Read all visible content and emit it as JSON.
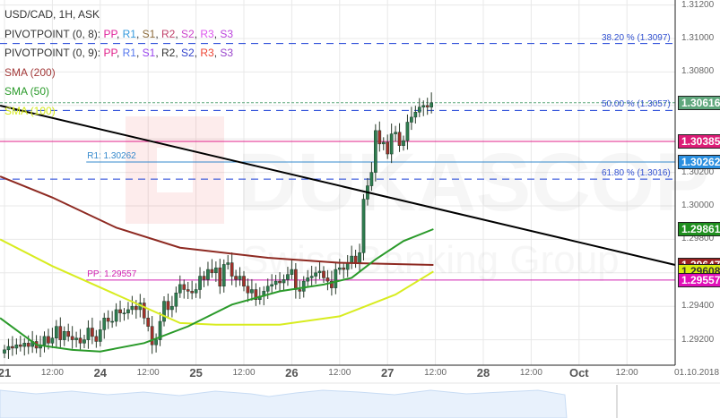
{
  "legend": {
    "title": "USD/CAD, 1H, ASK",
    "pivot1": {
      "label": "PIVOTPOINT (0, 8):",
      "items": [
        {
          "text": "PP",
          "color": "#e0209a"
        },
        {
          "text": "R1",
          "color": "#3399dd"
        },
        {
          "text": "S1",
          "color": "#8b6a3a"
        },
        {
          "text": "R2",
          "color": "#c0406a"
        },
        {
          "text": "S2",
          "color": "#cc44cc"
        },
        {
          "text": "R3",
          "color": "#dd55ee"
        },
        {
          "text": "S3",
          "color": "#bb44dd"
        }
      ]
    },
    "pivot2": {
      "label": "PIVOTPOINT (0, 9):",
      "items": [
        {
          "text": "PP",
          "color": "#e0208a"
        },
        {
          "text": "R1",
          "color": "#5577ee"
        },
        {
          "text": "S1",
          "color": "#9944ee"
        },
        {
          "text": "R2",
          "color": "#333333"
        },
        {
          "text": "S2",
          "color": "#3344cc"
        },
        {
          "text": "R3",
          "color": "#ee4433"
        },
        {
          "text": "S3",
          "color": "#9944cc"
        }
      ]
    },
    "sma200": {
      "text": "SMA (200)",
      "color": "#a33a3a"
    },
    "sma50": {
      "text": "SMA (50)",
      "color": "#2a9a2a"
    },
    "sma100": {
      "text": "SMA (100)",
      "color": "#d4e81a"
    }
  },
  "chart_data": {
    "type": "candlestick",
    "symbol": "USD/CAD",
    "timeframe": "1H",
    "ylim": [
      1.291,
      1.3122
    ],
    "y_ticks": [
      "1.31200",
      "1.31000",
      "1.30800",
      "1.30400",
      "1.30200",
      "1.30000",
      "1.29800",
      "1.29400",
      "1.29200"
    ],
    "y_tick_values": [
      1.312,
      1.31,
      1.308,
      1.304,
      1.302,
      1.3,
      1.298,
      1.294,
      1.292
    ],
    "x_ticks": [
      {
        "label": "21",
        "hour": 0,
        "day": true
      },
      {
        "label": "12:00",
        "hour": 12
      },
      {
        "label": "24",
        "hour": 24,
        "day": true
      },
      {
        "label": "12:00",
        "hour": 36
      },
      {
        "label": "25",
        "hour": 48,
        "day": true
      },
      {
        "label": "12:00",
        "hour": 60
      },
      {
        "label": "26",
        "hour": 72,
        "day": true
      },
      {
        "label": "12:00",
        "hour": 84
      },
      {
        "label": "27",
        "hour": 96,
        "day": true
      },
      {
        "label": "12:00",
        "hour": 108
      },
      {
        "label": "28",
        "hour": 120,
        "day": true
      },
      {
        "label": "12:00",
        "hour": 132
      },
      {
        "label": "Oct",
        "hour": 144,
        "day": true
      },
      {
        "label": "12:00",
        "hour": 156
      }
    ],
    "date_label": "01.10.2018",
    "closes": [
      1.2914,
      1.2916,
      1.2915,
      1.2917,
      1.2916,
      1.2918,
      1.2916,
      1.2919,
      1.2915,
      1.2917,
      1.2922,
      1.2918,
      1.2921,
      1.2928,
      1.292,
      1.2925,
      1.2922,
      1.292,
      1.2921,
      1.2918,
      1.292,
      1.2927,
      1.2922,
      1.2919,
      1.2926,
      1.2933,
      1.2931,
      1.2931,
      1.2938,
      1.2936,
      1.2936,
      1.2938,
      1.294,
      1.2938,
      1.2942,
      1.2933,
      1.2928,
      1.2917,
      1.292,
      1.2931,
      1.2943,
      1.2938,
      1.294,
      1.2948,
      1.2953,
      1.295,
      1.2949,
      1.2948,
      1.295,
      1.2958,
      1.2956,
      1.2962,
      1.296,
      1.2963,
      1.2952,
      1.2965,
      1.2966,
      1.2958,
      1.2956,
      1.2958,
      1.2952,
      1.2948,
      1.295,
      1.2944,
      1.2946,
      1.2949,
      1.2952,
      1.2953,
      1.2955,
      1.2954,
      1.2956,
      1.2959,
      1.2962,
      1.295,
      1.2949,
      1.2955,
      1.2957,
      1.2958,
      1.296,
      1.2961,
      1.2957,
      1.2955,
      1.2951,
      1.2962,
      1.2963,
      1.2962,
      1.2966,
      1.297,
      1.2966,
      1.2972,
      1.3004,
      1.3012,
      1.302,
      1.3045,
      1.3037,
      1.3038,
      1.3031,
      1.3043,
      1.3044,
      1.3036,
      1.3039,
      1.305,
      1.3053,
      1.3056,
      1.3059,
      1.306,
      1.3059,
      1.30616
    ],
    "first_open": 1.2912,
    "sma200": [
      [
        -1.1,
        1.30176
      ],
      [
        12,
        1.3005
      ],
      [
        28,
        1.2987
      ],
      [
        44,
        1.2975
      ],
      [
        66,
        1.2969
      ],
      [
        84,
        1.2966
      ],
      [
        107.5,
        1.29647
      ]
    ],
    "sma100": [
      [
        -1.1,
        1.298
      ],
      [
        12,
        1.2964
      ],
      [
        28,
        1.2947
      ],
      [
        44,
        1.293
      ],
      [
        53,
        1.2929
      ],
      [
        69,
        1.2929
      ],
      [
        84,
        1.2934
      ],
      [
        98,
        1.2947
      ],
      [
        107.5,
        1.29608
      ]
    ],
    "sma50": [
      [
        -1.1,
        1.2933
      ],
      [
        8,
        1.2917
      ],
      [
        17,
        1.2914
      ],
      [
        24,
        1.2913
      ],
      [
        35,
        1.2918
      ],
      [
        46,
        1.2928
      ],
      [
        57,
        1.2941
      ],
      [
        69,
        1.2949
      ],
      [
        80,
        1.2953
      ],
      [
        87,
        1.2957
      ],
      [
        93,
        1.2968
      ],
      [
        100,
        1.2979
      ],
      [
        107.5,
        1.29861
      ]
    ],
    "trendline": [
      [
        -1.1,
        1.30599
      ],
      [
        168.1,
        1.29647
      ]
    ],
    "fib_levels": [
      {
        "label": "38.20 % (1.3097)",
        "price": 1.3097
      },
      {
        "label": "50.00 % (1.3057)",
        "price": 1.3057
      },
      {
        "label": "61.80 % (1.3016)",
        "price": 1.3016
      }
    ],
    "pivot_lines": [
      {
        "label": "R1: 1.30262",
        "price": 1.30262,
        "color": "#3388cc",
        "start_hour": 20.5
      },
      {
        "label": "",
        "price": 1.30385,
        "color": "#e0208a",
        "start_hour": -2
      },
      {
        "label": "PP: 1.29557",
        "price": 1.29557,
        "color": "#d020b0",
        "start_hour": 20.5
      }
    ],
    "price_labels": [
      {
        "text": "1.30616",
        "price": 1.30616,
        "bg": "#5fa77c"
      },
      {
        "text": "1.30385",
        "price": 1.30385,
        "bg": "#dd1c77"
      },
      {
        "text": "1.30262",
        "price": 1.30262,
        "bg": "#2a8fe0"
      },
      {
        "text": "1.29861",
        "price": 1.29861,
        "bg": "#1f8f1f"
      },
      {
        "text": "1.29647",
        "price": 1.29647,
        "bg": "#992222"
      },
      {
        "text": "1.29608",
        "price": 1.29608,
        "bg": "#d8ec10",
        "fg": "#333"
      },
      {
        "text": "1.29557",
        "price": 1.29557,
        "bg": "#e010b8"
      }
    ],
    "colors": {
      "up": "#2e7d4f",
      "down": "#a3302a",
      "current_price_line": "#5fa77c",
      "fib": "#1a3fd6",
      "trendline": "#000000"
    }
  },
  "watermark": {
    "text": "DUKASCOPY",
    "sub": "Swiss Banking Group"
  }
}
